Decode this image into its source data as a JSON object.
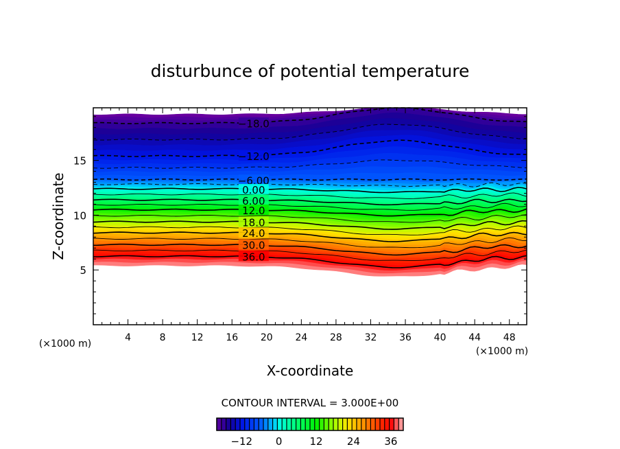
{
  "chart_data": {
    "type": "contour",
    "title": "disturbunce of potential temperature",
    "xlabel": "X-coordinate",
    "ylabel": "Z-coordinate",
    "x_unit_label": "(×1000 m)",
    "y_unit_label": "(×1000 m)",
    "xlim": [
      0,
      50
    ],
    "ylim": [
      0,
      19.8
    ],
    "x_ticks": [
      4,
      8,
      12,
      16,
      20,
      24,
      28,
      32,
      36,
      40,
      44,
      48
    ],
    "y_ticks": [
      5,
      10,
      15
    ],
    "contour_interval_text": "CONTOUR INTERVAL = 3.000E+00",
    "contour_interval": 3,
    "contour_labels": [
      {
        "value": -18,
        "text": "−18.0"
      },
      {
        "value": -12,
        "text": "−12.0"
      },
      {
        "value": -6,
        "text": "−6.00"
      },
      {
        "value": 0,
        "text": "0.00"
      },
      {
        "value": 6,
        "text": "6.00"
      },
      {
        "value": 12,
        "text": "12.0"
      },
      {
        "value": 18,
        "text": "18.0"
      },
      {
        "value": 24,
        "text": "24.0"
      },
      {
        "value": 30,
        "text": "30.0"
      },
      {
        "value": 36,
        "text": "36.0"
      }
    ],
    "level_heights_at_left": [
      [
        39,
        5.4
      ],
      [
        36,
        6.25
      ],
      [
        30,
        7.3
      ],
      [
        24,
        8.4
      ],
      [
        18,
        9.4
      ],
      [
        12,
        10.5
      ],
      [
        6,
        11.4
      ],
      [
        0,
        12.4
      ],
      [
        -6,
        13.25
      ],
      [
        -12,
        15.4
      ],
      [
        -18,
        18.4
      ],
      [
        -21,
        19.2
      ]
    ],
    "disturbance_center_x": 35,
    "colorbar": {
      "range": [
        -20,
        40
      ],
      "tick_values": [
        -12,
        0,
        12,
        24,
        36
      ],
      "tick_labels": [
        "−12",
        "0",
        "12",
        "24",
        "36"
      ]
    }
  }
}
